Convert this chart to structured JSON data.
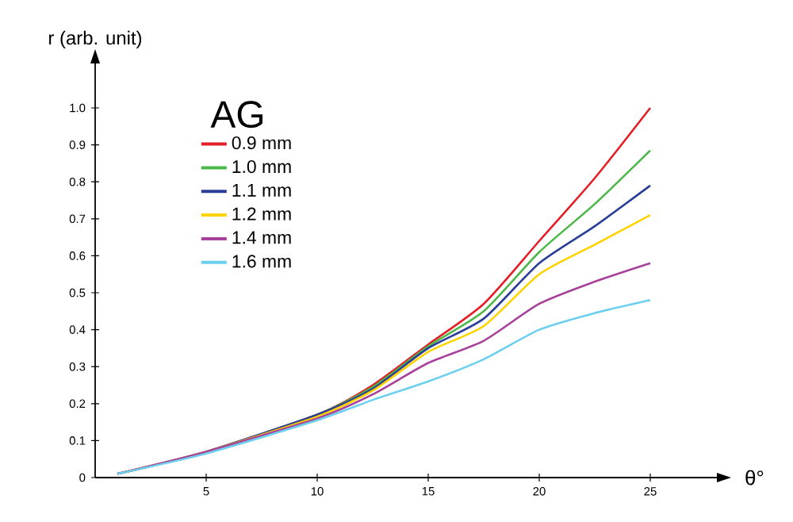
{
  "chart_data": {
    "type": "line",
    "xlabel": "θ°",
    "ylabel": "r (arb. unit)",
    "legend_title": "AG",
    "x": [
      1,
      5,
      10,
      12.5,
      15,
      17.5,
      20,
      22.5,
      25
    ],
    "series": [
      {
        "name": "0.9 mm",
        "color": "#e41e26",
        "values": [
          0.01,
          0.07,
          0.17,
          0.25,
          0.36,
          0.47,
          0.64,
          0.81,
          1.0
        ]
      },
      {
        "name": "1.0 mm",
        "color": "#4cb848",
        "values": [
          0.01,
          0.07,
          0.17,
          0.245,
          0.355,
          0.45,
          0.61,
          0.74,
          0.885
        ]
      },
      {
        "name": "1.1 mm",
        "color": "#2b3f98",
        "values": [
          0.01,
          0.07,
          0.17,
          0.24,
          0.35,
          0.43,
          0.58,
          0.68,
          0.79
        ]
      },
      {
        "name": "1.2 mm",
        "color": "#ffd200",
        "values": [
          0.01,
          0.07,
          0.165,
          0.235,
          0.34,
          0.41,
          0.55,
          0.63,
          0.71
        ]
      },
      {
        "name": "1.4 mm",
        "color": "#a8419a",
        "values": [
          0.01,
          0.07,
          0.16,
          0.225,
          0.31,
          0.37,
          0.47,
          0.53,
          0.58
        ]
      },
      {
        "name": "1.6 mm",
        "color": "#6dcff0",
        "values": [
          0.01,
          0.065,
          0.155,
          0.21,
          0.26,
          0.32,
          0.4,
          0.445,
          0.48
        ]
      }
    ],
    "xlim": [
      0,
      28
    ],
    "ylim": [
      0,
      1.12
    ],
    "xticks": [
      5,
      10,
      15,
      20,
      25
    ],
    "yticks": [
      0,
      0.1,
      0.2,
      0.3,
      0.4,
      0.5,
      0.6,
      0.7,
      0.8,
      0.9,
      {
        "value": 1.0,
        "label": "1.0"
      }
    ],
    "legend": "top left",
    "grid": false,
    "marker": "none",
    "line_style": "solid"
  }
}
